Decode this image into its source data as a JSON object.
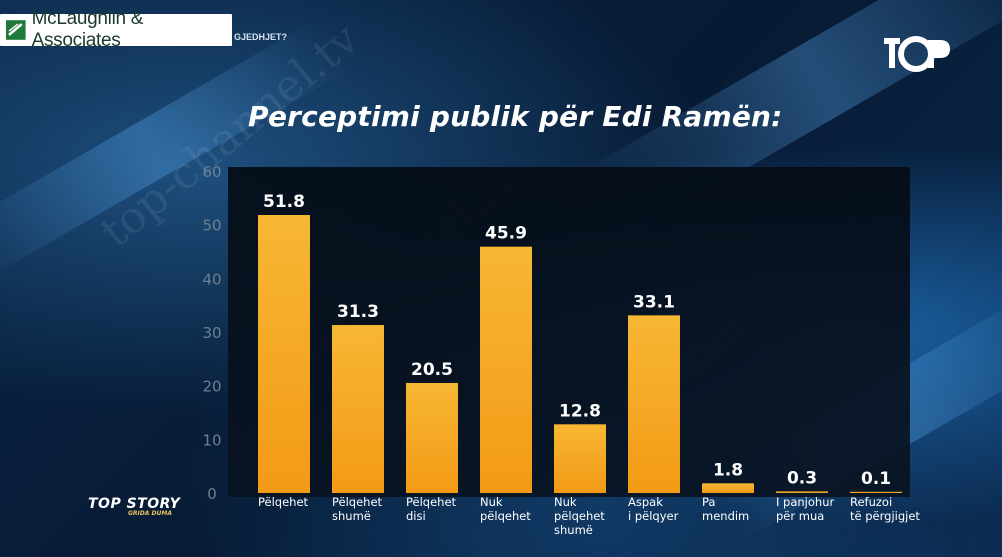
{
  "header": {
    "firm": "McLaughlin & Associates",
    "caption_fragment": "GJEDHJET?"
  },
  "brand": {
    "main": "TOP STORY",
    "sub": "GRIDA DUMA"
  },
  "colors": {
    "bar_top": "#f7b733",
    "bar_bottom": "#f5a41c",
    "axis_text": "#6f7f90",
    "label_text": "#ffffff"
  },
  "chart_data": {
    "type": "bar",
    "title": "Perceptimi publik për Edi Ramën:",
    "categories": [
      [
        "Pëlqehet"
      ],
      [
        "Pëlqehet",
        "shumë"
      ],
      [
        "Pëlqehet",
        "disi"
      ],
      [
        "Nuk",
        "pëlqehet"
      ],
      [
        "Nuk",
        "pëlqehet",
        "shumë"
      ],
      [
        "Aspak",
        "i pëlqyer"
      ],
      [
        "Pa",
        "mendim"
      ],
      [
        "I panjohur",
        "për mua"
      ],
      [
        "Refuzoi",
        "të përgjigjet"
      ]
    ],
    "values": [
      51.8,
      31.3,
      20.5,
      45.9,
      12.8,
      33.1,
      1.8,
      0.3,
      0.1
    ],
    "value_labels": [
      "51.8",
      "31.3",
      "20.5",
      "45.9",
      "12.8",
      "33.1",
      "1.8",
      "0.3",
      "0.1"
    ],
    "yticks": [
      "0",
      "10",
      "20",
      "30",
      "40",
      "50",
      "60"
    ],
    "ylim": [
      0,
      60
    ],
    "grid": false,
    "legend": "none"
  }
}
